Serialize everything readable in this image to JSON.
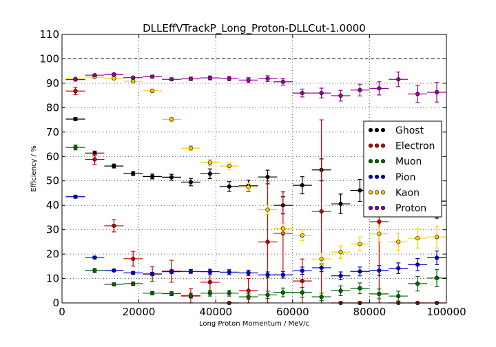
{
  "chart_data": {
    "type": "scatter",
    "title": "DLLEffVTrackP_Long_Proton-DLLCut-1.0000",
    "xlabel": "Long Proton Momentum / MeV/c",
    "ylabel": "Efficiency / %",
    "xlim": [
      0,
      100000
    ],
    "ylim": [
      0,
      110
    ],
    "xticks": [
      0,
      20000,
      40000,
      60000,
      80000,
      100000
    ],
    "xtick_labels": [
      "0",
      "20000",
      "40000",
      "60000",
      "80000",
      "100000"
    ],
    "yticks": [
      0,
      10,
      20,
      30,
      40,
      50,
      60,
      70,
      80,
      90,
      100,
      110
    ],
    "ytick_labels": [
      "0",
      "10",
      "20",
      "30",
      "40",
      "50",
      "60",
      "70",
      "80",
      "90",
      "100",
      "110"
    ],
    "reference_line": 100,
    "grid": true,
    "legend_position": "right",
    "x_bin_halfwidth": 2500,
    "series": [
      {
        "name": "Ghost",
        "color": "#000000",
        "x": [
          3500,
          8500,
          13500,
          18500,
          23500,
          28500,
          33500,
          38500,
          43500,
          48500,
          53500,
          57500,
          62500,
          67500,
          72500,
          77500,
          82500,
          87500,
          92500,
          97500
        ],
        "y": [
          75.3,
          61.4,
          56.1,
          53.0,
          51.8,
          51.5,
          49.5,
          52.9,
          47.7,
          48.0,
          51.6,
          40.0,
          48.2,
          54.5,
          40.6,
          46.1,
          46.8,
          48.5,
          47.0,
          41.7
        ],
        "err": [
          0.6,
          0.8,
          0.8,
          0.8,
          1.0,
          1.2,
          1.5,
          2.0,
          2.0,
          2.3,
          2.8,
          3.5,
          3.5,
          4.5,
          4.0,
          4.5,
          5.0,
          5.5,
          6.0,
          7.0
        ]
      },
      {
        "name": "Electron",
        "color": "#cc0000",
        "x": [
          3500,
          8500,
          13500,
          18500,
          23500,
          28500,
          33500,
          38500,
          43500,
          48500,
          53500,
          57500,
          62500,
          67500,
          72500,
          77500,
          82500,
          87500,
          92500,
          97500
        ],
        "y": [
          86.8,
          58.8,
          31.6,
          18.1,
          11.8,
          13.0,
          2.8,
          8.5,
          0,
          5.0,
          25.0,
          28.5,
          9.0,
          37.5,
          0,
          0,
          33.3,
          0,
          0,
          0
        ],
        "err": [
          1.5,
          2.0,
          2.5,
          3.0,
          3.0,
          4.5,
          3.0,
          4.0,
          0,
          5.0,
          25.0,
          17.0,
          9.0,
          37.5,
          0,
          0,
          33.3,
          0,
          0,
          0
        ]
      },
      {
        "name": "Muon",
        "color": "#006600",
        "x": [
          3500,
          8500,
          13500,
          18500,
          23500,
          28500,
          33500,
          38500,
          43500,
          48500,
          53500,
          57500,
          62500,
          67500,
          72500,
          77500,
          82500,
          87500,
          92500,
          97500
        ],
        "y": [
          63.7,
          13.3,
          7.6,
          7.9,
          4.0,
          3.8,
          3.0,
          4.0,
          4.0,
          2.5,
          3.3,
          4.3,
          4.3,
          2.5,
          5.0,
          6.0,
          3.7,
          2.8,
          7.9,
          10.2
        ],
        "err": [
          1.0,
          0.8,
          0.6,
          0.7,
          0.7,
          0.8,
          1.0,
          1.2,
          1.2,
          1.2,
          1.5,
          1.8,
          2.0,
          1.5,
          2.0,
          2.2,
          2.0,
          2.0,
          3.0,
          3.5
        ]
      },
      {
        "name": "Pion",
        "color": "#0000cc",
        "x": [
          3500,
          8500,
          13500,
          18500,
          23500,
          28500,
          33500,
          38500,
          43500,
          48500,
          53500,
          57500,
          62500,
          67500,
          72500,
          77500,
          82500,
          87500,
          92500,
          97500
        ],
        "y": [
          43.5,
          18.6,
          13.3,
          12.3,
          11.9,
          12.8,
          12.9,
          12.8,
          12.6,
          12.3,
          11.5,
          11.5,
          13.2,
          14.4,
          11.1,
          12.9,
          13.3,
          14.2,
          15.7,
          18.5
        ],
        "err": [
          0.6,
          0.5,
          0.5,
          0.5,
          0.6,
          0.7,
          0.8,
          1.0,
          1.0,
          1.1,
          1.2,
          1.3,
          1.5,
          1.6,
          1.6,
          1.8,
          2.0,
          2.2,
          2.5,
          2.8
        ]
      },
      {
        "name": "Kaon",
        "color": "#ffcc00",
        "x": [
          3500,
          8500,
          13500,
          18500,
          23500,
          28500,
          33500,
          38500,
          43500,
          48500,
          53500,
          57500,
          62500,
          67500,
          72500,
          77500,
          82500,
          87500,
          92500,
          97500
        ],
        "y": [
          91.8,
          92.5,
          92.0,
          90.8,
          86.9,
          75.2,
          63.4,
          57.5,
          56.1,
          47.5,
          38.2,
          30.5,
          27.7,
          18.0,
          20.8,
          24.2,
          28.3,
          25.0,
          26.5,
          27.0
        ],
        "err": [
          0.4,
          0.4,
          0.5,
          0.6,
          0.7,
          0.8,
          1.0,
          1.2,
          1.4,
          1.6,
          1.8,
          2.0,
          2.2,
          2.4,
          2.6,
          2.8,
          3.2,
          3.5,
          4.0,
          4.5
        ]
      },
      {
        "name": "Proton",
        "color": "#990099",
        "x": [
          3500,
          8500,
          13500,
          18500,
          23500,
          28500,
          33500,
          38500,
          43500,
          48500,
          53500,
          57500,
          62500,
          67500,
          72500,
          77500,
          82500,
          87500,
          92500,
          97500
        ],
        "y": [
          91.5,
          93.3,
          93.6,
          92.3,
          92.7,
          91.6,
          91.8,
          92.2,
          91.9,
          91.3,
          91.9,
          90.6,
          86.0,
          86.0,
          84.9,
          87.2,
          87.9,
          91.6,
          85.6,
          86.3
        ],
        "err": [
          0.4,
          0.4,
          0.5,
          0.5,
          0.6,
          0.6,
          0.7,
          0.8,
          0.9,
          1.0,
          1.2,
          1.4,
          1.6,
          2.0,
          2.2,
          2.4,
          2.7,
          3.0,
          3.5,
          4.0
        ]
      }
    ]
  }
}
